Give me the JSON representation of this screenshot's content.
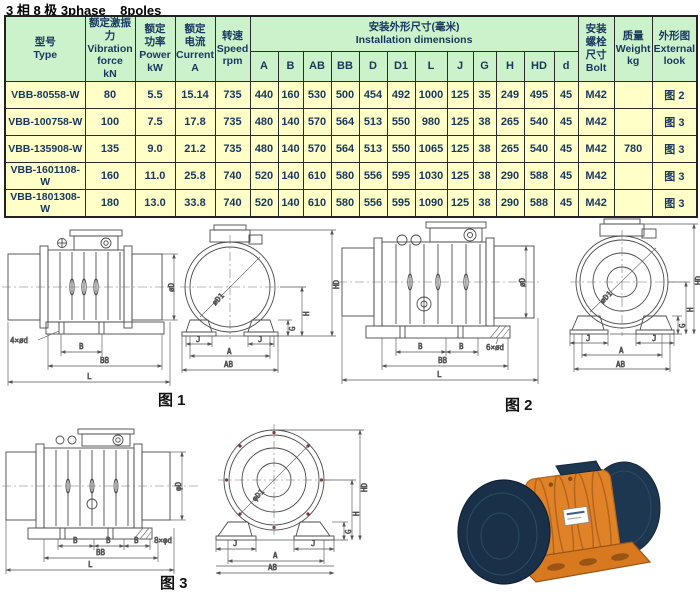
{
  "title": "3 相 8 极 3phase    8poles",
  "table": {
    "headers": {
      "type": "型号\nType",
      "vibration": "额定激振力\nVibration\nforce\nkN",
      "power": "额定\n功率\nPower\nkW",
      "current": "额定\n电流\nCurrent\nA",
      "speed": "转速\nSpeed\nrpm",
      "install": "安装外形尺寸(毫米)\nInstallation dimensions",
      "bolt": "安装\n螺栓\n尺寸\nBolt",
      "weight": "质量\nWeight\nkg",
      "external": "外形图\nExternal\nlook"
    },
    "dim_headers": [
      "A",
      "B",
      "AB",
      "BB",
      "D",
      "D1",
      "L",
      "J",
      "G",
      "H",
      "HD",
      "d"
    ],
    "rows": [
      {
        "type": "VBB-80558-W",
        "force": "80",
        "power": "5.5",
        "current": "15.14",
        "speed": "735",
        "dims": [
          "440",
          "160",
          "530",
          "500",
          "454",
          "492",
          "1000",
          "125",
          "35",
          "249",
          "495",
          "45"
        ],
        "bolt": "M42",
        "weight": "",
        "figure": "图 2"
      },
      {
        "type": "VBB-100758-W",
        "force": "100",
        "power": "7.5",
        "current": "17.8",
        "speed": "735",
        "dims": [
          "480",
          "140",
          "570",
          "564",
          "513",
          "550",
          "980",
          "125",
          "38",
          "265",
          "540",
          "45"
        ],
        "bolt": "M42",
        "weight": "",
        "figure": "图 3"
      },
      {
        "type": "VBB-135908-W",
        "force": "135",
        "power": "9.0",
        "current": "21.2",
        "speed": "735",
        "dims": [
          "480",
          "140",
          "570",
          "564",
          "513",
          "550",
          "1065",
          "125",
          "38",
          "265",
          "540",
          "45"
        ],
        "bolt": "M42",
        "weight": "780",
        "figure": "图 3"
      },
      {
        "type": "VBB-1601108-W",
        "force": "160",
        "power": "11.0",
        "current": "25.8",
        "speed": "740",
        "dims": [
          "520",
          "140",
          "610",
          "580",
          "556",
          "595",
          "1030",
          "125",
          "38",
          "290",
          "588",
          "45"
        ],
        "bolt": "M42",
        "weight": "",
        "figure": "图 3"
      },
      {
        "type": "VBB-1801308-W",
        "force": "180",
        "power": "13.0",
        "current": "33.8",
        "speed": "740",
        "dims": [
          "520",
          "140",
          "610",
          "580",
          "556",
          "595",
          "1090",
          "125",
          "38",
          "290",
          "588",
          "45"
        ],
        "bolt": "M42",
        "weight": "",
        "figure": "图 3"
      }
    ]
  },
  "figures": {
    "fig1": {
      "caption": "图 1",
      "labels": {
        "holes": "4×ød",
        "b": "B",
        "bb": "BB",
        "l": "L",
        "dD": "øD",
        "dD1": "øD1",
        "j": "J",
        "a": "A",
        "ab": "AB",
        "g": "G",
        "h": "H",
        "hd": "HD"
      }
    },
    "fig2": {
      "caption": "图 2",
      "labels": {
        "holes": "6×ød",
        "b": "B",
        "bb": "BB",
        "l": "L",
        "dD": "øD",
        "dD1": "øD1",
        "j": "J",
        "a": "A",
        "ab": "AB",
        "g": "G",
        "h": "H",
        "hd": "HD"
      }
    },
    "fig3": {
      "caption": "图 3",
      "labels": {
        "holes": "8×φd",
        "b": "B",
        "bb": "BB",
        "l": "L",
        "dD": "φD",
        "dD1": "φD1",
        "j": "J",
        "a": "A",
        "ab": "AB",
        "g": "G",
        "h": "H",
        "hd": "HD"
      }
    }
  },
  "photo": {
    "body_color": "#E08227",
    "cap_color": "#1D3750"
  }
}
